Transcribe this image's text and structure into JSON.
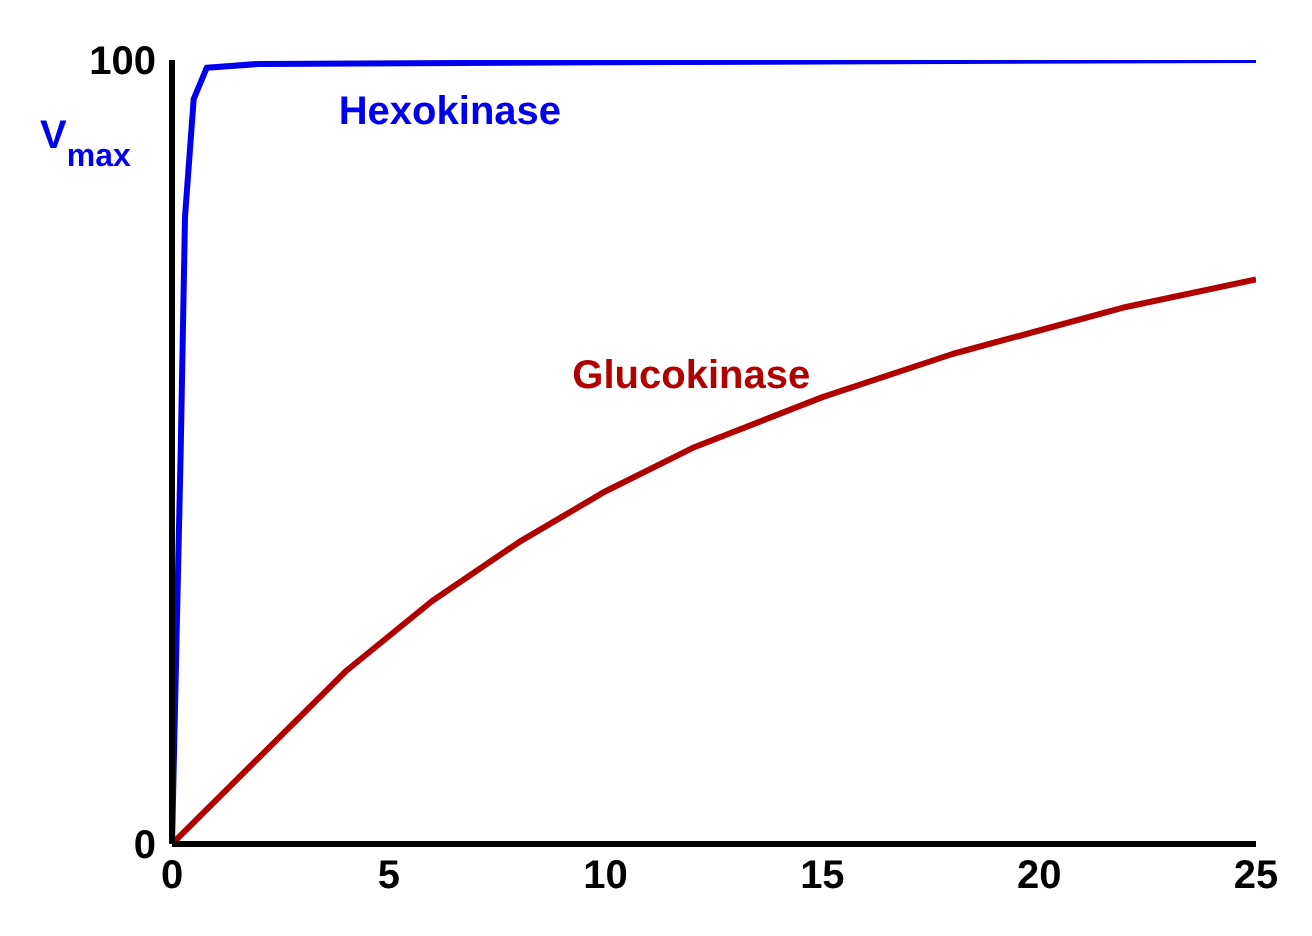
{
  "chart_data": {
    "type": "line",
    "ylabel": "V$_{max}$",
    "xlim": [
      0,
      25
    ],
    "xticks": [
      0,
      5,
      10,
      15,
      20,
      25
    ],
    "ylim": [
      0,
      100
    ],
    "yticks": [
      0,
      100
    ],
    "grid": false,
    "legend": false,
    "marker": "none",
    "line_style": "solid",
    "series": [
      {
        "name": "Hexokinase",
        "color": "#0000ee",
        "x": [
          0,
          0.2,
          0.3,
          0.5,
          0.8,
          2,
          10,
          25
        ],
        "values": [
          0,
          50,
          80,
          95,
          99,
          99.5,
          99.7,
          100
        ]
      },
      {
        "name": "Glucokinase",
        "color": "#b00000",
        "x": [
          0,
          2,
          4,
          6,
          8,
          10,
          12,
          15,
          18,
          20,
          22,
          25
        ],
        "values": [
          0,
          11,
          22,
          31,
          38.5,
          45,
          50.5,
          57,
          62.5,
          65.5,
          68.5,
          72
        ]
      }
    ]
  }
}
